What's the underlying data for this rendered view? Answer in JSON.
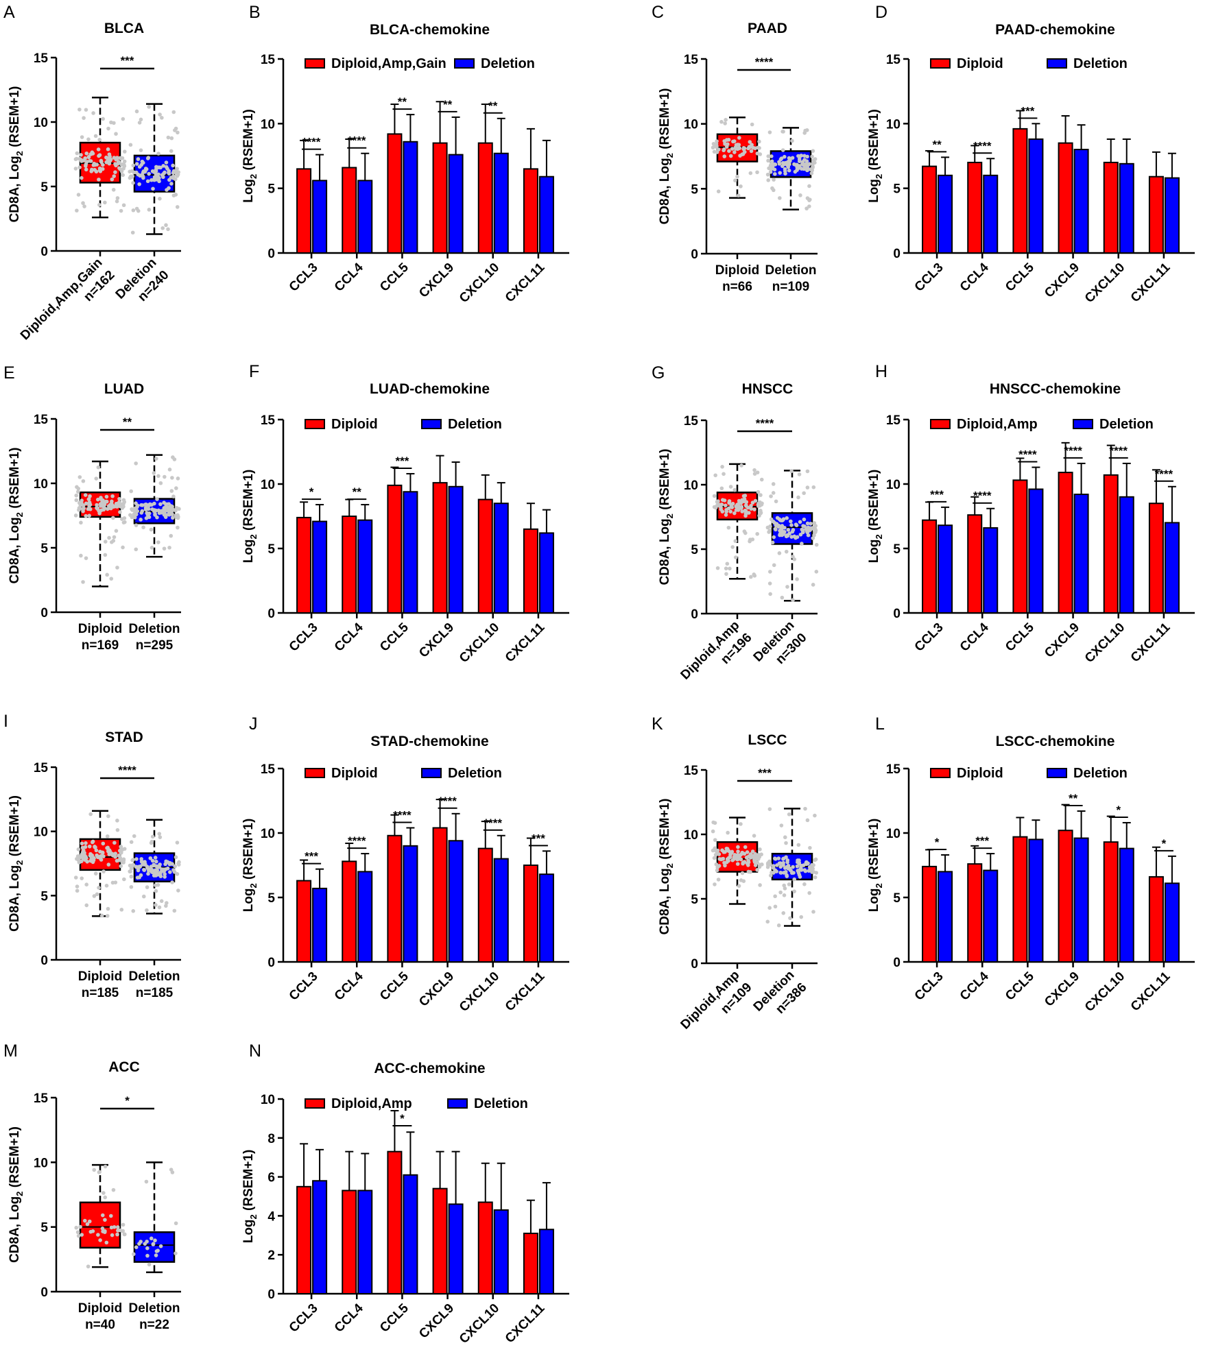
{
  "colors": {
    "red": "#ff0000",
    "blue": "#0000ff",
    "point": "#c8c8c8"
  },
  "chart_data": [
    {
      "id": "A",
      "type": "box",
      "title": "BLCA",
      "ylabel": "CD8A, Log2 (RSEM+1)",
      "ylim": [
        0,
        15
      ],
      "yticks": [
        0,
        5,
        10,
        15
      ],
      "groups": [
        {
          "name": "Diploid,Amp,Gain",
          "n": "n=162",
          "min": 2.6,
          "q1": 5.3,
          "median": 6.8,
          "q3": 8.4,
          "max": 11.9,
          "color": "red"
        },
        {
          "name": "Deletion",
          "n": "n=240",
          "min": 1.3,
          "q1": 4.6,
          "median": 5.9,
          "q3": 7.4,
          "max": 11.4,
          "color": "blue"
        }
      ],
      "sig": "***",
      "rotate": true
    },
    {
      "id": "B",
      "type": "bar",
      "title": "BLCA-chemokine",
      "ylabel": "Log2 (RSEM+1)",
      "ylim": [
        0,
        15
      ],
      "yticks": [
        0,
        5,
        10,
        15
      ],
      "categories": [
        "CCL3",
        "CCL4",
        "CCL5",
        "CXCL9",
        "CXCL10",
        "CXCL11"
      ],
      "legend": [
        "Diploid,Amp,Gain",
        "Deletion"
      ],
      "series": [
        {
          "name": "Diploid,Amp,Gain",
          "values": [
            6.5,
            6.6,
            9.2,
            8.5,
            8.5,
            6.5
          ],
          "errors": [
            2.2,
            2.2,
            2.3,
            3.2,
            3.0,
            3.1
          ]
        },
        {
          "name": "Deletion",
          "values": [
            5.6,
            5.6,
            8.6,
            7.6,
            7.7,
            5.9
          ],
          "errors": [
            2.0,
            2.1,
            2.1,
            2.9,
            2.7,
            2.8
          ]
        }
      ],
      "sig": [
        "****",
        "****",
        "**",
        "**",
        "**",
        ""
      ]
    },
    {
      "id": "C",
      "type": "box",
      "title": "PAAD",
      "ylabel": "CD8A, Log2 (RSEM+1)",
      "ylim": [
        0,
        15
      ],
      "yticks": [
        0,
        5,
        10,
        15
      ],
      "groups": [
        {
          "name": "Diploid",
          "n": "n=66",
          "min": 4.3,
          "q1": 7.1,
          "median": 8.2,
          "q3": 9.2,
          "max": 10.5,
          "color": "red"
        },
        {
          "name": "Deletion",
          "n": "n=109",
          "min": 3.4,
          "q1": 5.9,
          "median": 6.9,
          "q3": 7.9,
          "max": 9.7,
          "color": "blue"
        }
      ],
      "sig": "****",
      "rotate": false
    },
    {
      "id": "D",
      "type": "bar",
      "title": "PAAD-chemokine",
      "ylabel": "Log2 (RSEM+1)",
      "ylim": [
        0,
        15
      ],
      "yticks": [
        0,
        5,
        10,
        15
      ],
      "categories": [
        "CCL3",
        "CCL4",
        "CCL5",
        "CXCL9",
        "CXCL10",
        "CXCL11"
      ],
      "legend": [
        "Diploid",
        "Deletion"
      ],
      "series": [
        {
          "name": "Diploid",
          "values": [
            6.7,
            7.0,
            9.6,
            8.5,
            7.0,
            5.9
          ],
          "errors": [
            1.2,
            1.3,
            1.4,
            2.1,
            1.8,
            1.9
          ]
        },
        {
          "name": "Deletion",
          "values": [
            6.0,
            6.0,
            8.8,
            8.0,
            6.9,
            5.8
          ],
          "errors": [
            1.4,
            1.3,
            1.2,
            1.9,
            1.9,
            1.9
          ]
        }
      ],
      "sig": [
        "**",
        "****",
        "***",
        "",
        "",
        ""
      ]
    },
    {
      "id": "E",
      "type": "box",
      "title": "LUAD",
      "ylabel": "CD8A, Log2 (RSEM+1)",
      "ylim": [
        0,
        15
      ],
      "yticks": [
        0,
        5,
        10,
        15
      ],
      "groups": [
        {
          "name": "Diploid",
          "n": "n=169",
          "min": 2.0,
          "q1": 7.4,
          "median": 8.2,
          "q3": 9.3,
          "max": 11.7,
          "color": "red"
        },
        {
          "name": "Deletion",
          "n": "n=295",
          "min": 4.3,
          "q1": 6.9,
          "median": 7.8,
          "q3": 8.8,
          "max": 12.2,
          "color": "blue"
        }
      ],
      "sig": "**",
      "rotate": false
    },
    {
      "id": "F",
      "type": "bar",
      "title": "LUAD-chemokine",
      "ylabel": "Log2 (RSEM+1)",
      "ylim": [
        0,
        15
      ],
      "yticks": [
        0,
        5,
        10,
        15
      ],
      "categories": [
        "CCL3",
        "CCL4",
        "CCL5",
        "CXCL9",
        "CXCL10",
        "CXCL11"
      ],
      "legend": [
        "Diploid",
        "Deletion"
      ],
      "series": [
        {
          "name": "Diploid",
          "values": [
            7.4,
            7.5,
            9.9,
            10.1,
            8.8,
            6.5
          ],
          "errors": [
            1.2,
            1.3,
            1.4,
            2.1,
            1.9,
            2.0
          ]
        },
        {
          "name": "Deletion",
          "values": [
            7.1,
            7.2,
            9.4,
            9.8,
            8.5,
            6.2
          ],
          "errors": [
            1.3,
            1.2,
            1.4,
            1.9,
            1.6,
            1.8
          ]
        }
      ],
      "sig": [
        "*",
        "**",
        "***",
        "",
        "",
        ""
      ]
    },
    {
      "id": "G",
      "type": "box",
      "title": "HNSCC",
      "ylabel": "CD8A, Log2 (RSEM+1)",
      "ylim": [
        0,
        15
      ],
      "yticks": [
        0,
        5,
        10,
        15
      ],
      "groups": [
        {
          "name": "Diploid,Amp",
          "n": "n=196",
          "min": 2.7,
          "q1": 7.3,
          "median": 8.3,
          "q3": 9.4,
          "max": 11.6,
          "color": "red"
        },
        {
          "name": "Deletion",
          "n": "n=300",
          "min": 1.0,
          "q1": 5.4,
          "median": 6.7,
          "q3": 7.8,
          "max": 11.1,
          "color": "blue"
        }
      ],
      "sig": "****",
      "rotate": true
    },
    {
      "id": "H",
      "type": "bar",
      "title": "HNSCC-chemokine",
      "ylabel": "Log2 (RSEM+1)",
      "ylim": [
        0,
        15
      ],
      "yticks": [
        0,
        5,
        10,
        15
      ],
      "categories": [
        "CCL3",
        "CCL4",
        "CCL5",
        "CXCL9",
        "CXCL10",
        "CXCL11"
      ],
      "legend": [
        "Diploid,Amp",
        "Deletion"
      ],
      "series": [
        {
          "name": "Diploid,Amp",
          "values": [
            7.2,
            7.6,
            10.3,
            10.9,
            10.7,
            8.5
          ],
          "errors": [
            1.4,
            1.4,
            1.7,
            2.3,
            2.3,
            2.6
          ]
        },
        {
          "name": "Deletion",
          "values": [
            6.8,
            6.6,
            9.6,
            9.2,
            9.0,
            7.0
          ],
          "errors": [
            1.4,
            1.5,
            1.7,
            2.4,
            2.6,
            2.8
          ]
        }
      ],
      "sig": [
        "***",
        "****",
        "****",
        "****",
        "****",
        "****"
      ]
    },
    {
      "id": "I",
      "type": "box",
      "title": "STAD",
      "ylabel": "CD8A, Log2 (RSEM+1)",
      "ylim": [
        0,
        15
      ],
      "yticks": [
        0,
        5,
        10,
        15
      ],
      "groups": [
        {
          "name": "Diploid",
          "n": "n=185",
          "min": 3.4,
          "q1": 7.0,
          "median": 8.0,
          "q3": 9.4,
          "max": 11.6,
          "color": "red"
        },
        {
          "name": "Deletion",
          "n": "n=185",
          "min": 3.6,
          "q1": 6.1,
          "median": 7.2,
          "q3": 8.3,
          "max": 10.9,
          "color": "blue"
        }
      ],
      "sig": "****",
      "rotate": false
    },
    {
      "id": "J",
      "type": "bar",
      "title": "STAD-chemokine",
      "ylabel": "Log2 (RSEM+1)",
      "ylim": [
        0,
        15
      ],
      "yticks": [
        0,
        5,
        10,
        15
      ],
      "categories": [
        "CCL3",
        "CCL4",
        "CCL5",
        "CXCL9",
        "CXCL10",
        "CXCL11"
      ],
      "legend": [
        "Diploid",
        "Deletion"
      ],
      "series": [
        {
          "name": "Diploid",
          "values": [
            6.3,
            7.8,
            9.8,
            10.4,
            8.8,
            7.5
          ],
          "errors": [
            1.6,
            1.4,
            1.6,
            2.2,
            2.1,
            2.1
          ]
        },
        {
          "name": "Deletion",
          "values": [
            5.7,
            7.0,
            9.0,
            9.4,
            8.0,
            6.8
          ],
          "errors": [
            1.5,
            1.4,
            1.4,
            2.1,
            1.8,
            1.8
          ]
        }
      ],
      "sig": [
        "***",
        "****",
        "****",
        "****",
        "****",
        "***"
      ]
    },
    {
      "id": "K",
      "type": "box",
      "title": "LSCC",
      "ylabel": "CD8A, Log2 (RSEM+1)",
      "ylim": [
        0,
        15
      ],
      "yticks": [
        0,
        5,
        10,
        15
      ],
      "groups": [
        {
          "name": "Diploid,Amp",
          "n": "n=109",
          "min": 4.6,
          "q1": 7.1,
          "median": 8.1,
          "q3": 9.4,
          "max": 11.3,
          "color": "red"
        },
        {
          "name": "Deletion",
          "n": "n=386",
          "min": 2.9,
          "q1": 6.5,
          "median": 7.5,
          "q3": 8.5,
          "max": 12.0,
          "color": "blue"
        }
      ],
      "sig": "***",
      "rotate": true
    },
    {
      "id": "L",
      "type": "bar",
      "title": "LSCC-chemokine",
      "ylabel": "Log2 (RSEM+1)",
      "ylim": [
        0,
        15
      ],
      "yticks": [
        0,
        5,
        10,
        15
      ],
      "categories": [
        "CCL3",
        "CCL4",
        "CCL5",
        "CXCL9",
        "CXCL10",
        "CXCL11"
      ],
      "legend": [
        "Diploid",
        "Deletion"
      ],
      "series": [
        {
          "name": "Diploid",
          "values": [
            7.4,
            7.6,
            9.7,
            10.2,
            9.3,
            6.6
          ],
          "errors": [
            1.3,
            1.4,
            1.5,
            2.0,
            2.0,
            2.3
          ]
        },
        {
          "name": "Deletion",
          "values": [
            7.0,
            7.1,
            9.5,
            9.6,
            8.8,
            6.1
          ],
          "errors": [
            1.3,
            1.3,
            1.5,
            2.1,
            2.0,
            2.1
          ]
        }
      ],
      "sig": [
        "*",
        "***",
        "",
        "**",
        "*",
        "*"
      ]
    },
    {
      "id": "M",
      "type": "box",
      "title": "ACC",
      "ylabel": "CD8A, Log2 (RSEM+1)",
      "ylim": [
        0,
        15
      ],
      "yticks": [
        0,
        5,
        10,
        15
      ],
      "groups": [
        {
          "name": "Diploid",
          "n": "n=40",
          "min": 1.9,
          "q1": 3.4,
          "median": 5.0,
          "q3": 6.9,
          "max": 9.8,
          "color": "red"
        },
        {
          "name": "Deletion",
          "n": "n=22",
          "min": 1.5,
          "q1": 2.3,
          "median": 3.6,
          "q3": 4.6,
          "max": 10.0,
          "color": "blue"
        }
      ],
      "sig": "*",
      "rotate": false
    },
    {
      "id": "N",
      "type": "bar",
      "title": "ACC-chemokine",
      "ylabel": "Log2 (RSEM+1)",
      "ylim": [
        0,
        10
      ],
      "yticks": [
        0,
        2,
        4,
        6,
        8,
        10
      ],
      "categories": [
        "CCL3",
        "CCL4",
        "CCL5",
        "CXCL9",
        "CXCL10",
        "CXCL11"
      ],
      "legend": [
        "Diploid,Amp",
        "Deletion"
      ],
      "series": [
        {
          "name": "Diploid,Amp",
          "values": [
            5.5,
            5.3,
            7.3,
            5.4,
            4.7,
            3.1
          ],
          "errors": [
            2.2,
            2.0,
            2.1,
            1.9,
            2.0,
            1.7
          ]
        },
        {
          "name": "Deletion",
          "values": [
            5.8,
            5.3,
            6.1,
            4.6,
            4.3,
            3.3
          ],
          "errors": [
            1.6,
            1.9,
            2.2,
            2.7,
            2.4,
            2.4
          ]
        }
      ],
      "sig": [
        "",
        "",
        "*",
        "",
        "",
        ""
      ]
    }
  ]
}
